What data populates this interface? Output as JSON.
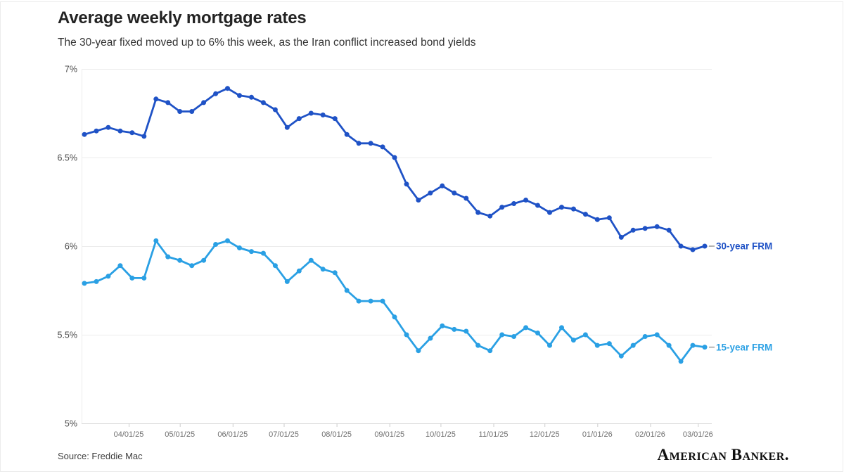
{
  "chart_data": {
    "type": "line",
    "title": "Average weekly mortgage rates",
    "subtitle": "The 30-year fixed moved up to 6% this week, as the Iran conflict increased bond yields",
    "xlabel": "",
    "ylabel": "",
    "ylim": [
      5,
      7
    ],
    "grid": "horizontal-only",
    "legend_position": "right-of-line-ends",
    "frequency": "weekly",
    "start_date": "2025-03-06",
    "end_date": "2026-03-05",
    "y_ticks": [
      {
        "value": 7,
        "label": "7%"
      },
      {
        "value": 6.5,
        "label": "6.5%"
      },
      {
        "value": 6,
        "label": "6%"
      },
      {
        "value": 5.5,
        "label": "5.5%"
      },
      {
        "value": 5,
        "label": "5%"
      }
    ],
    "x_ticks": [
      {
        "label": "04/01/25",
        "date": "2025-04-01"
      },
      {
        "label": "05/01/25",
        "date": "2025-05-01"
      },
      {
        "label": "06/01/25",
        "date": "2025-06-01"
      },
      {
        "label": "07/01/25",
        "date": "2025-07-01"
      },
      {
        "label": "08/01/25",
        "date": "2025-08-01"
      },
      {
        "label": "09/01/25",
        "date": "2025-09-01"
      },
      {
        "label": "10/01/25",
        "date": "2025-10-01"
      },
      {
        "label": "11/01/25",
        "date": "2025-11-01"
      },
      {
        "label": "12/01/25",
        "date": "2025-12-01"
      },
      {
        "label": "01/01/26",
        "date": "2026-01-01"
      },
      {
        "label": "02/01/26",
        "date": "2026-02-01"
      },
      {
        "label": "03/01/26",
        "date": "2026-03-01"
      }
    ],
    "dates": [
      "03/06/25",
      "03/13/25",
      "03/20/25",
      "03/27/25",
      "04/03/25",
      "04/10/25",
      "04/17/25",
      "04/24/25",
      "05/01/25",
      "05/08/25",
      "05/15/25",
      "05/22/25",
      "05/29/25",
      "06/05/25",
      "06/12/25",
      "06/19/25",
      "06/26/25",
      "07/03/25",
      "07/10/25",
      "07/17/25",
      "07/24/25",
      "07/31/25",
      "08/07/25",
      "08/14/25",
      "08/21/25",
      "08/28/25",
      "09/04/25",
      "09/11/25",
      "09/18/25",
      "09/25/25",
      "10/02/25",
      "10/09/25",
      "10/16/25",
      "10/23/25",
      "10/30/25",
      "11/06/25",
      "11/13/25",
      "11/20/25",
      "11/27/25",
      "12/04/25",
      "12/11/25",
      "12/18/25",
      "12/25/25",
      "01/01/26",
      "01/08/26",
      "01/15/26",
      "01/22/26",
      "01/29/26",
      "02/05/26",
      "02/12/26",
      "02/19/26",
      "02/26/26",
      "03/05/26"
    ],
    "series": [
      {
        "name": "30-year FRM",
        "color": "#1f52c6",
        "values": [
          6.63,
          6.65,
          6.67,
          6.65,
          6.64,
          6.62,
          6.83,
          6.81,
          6.76,
          6.76,
          6.81,
          6.86,
          6.89,
          6.85,
          6.84,
          6.81,
          6.77,
          6.67,
          6.72,
          6.75,
          6.74,
          6.72,
          6.63,
          6.58,
          6.58,
          6.56,
          6.5,
          6.35,
          6.26,
          6.3,
          6.34,
          6.3,
          6.27,
          6.19,
          6.17,
          6.22,
          6.24,
          6.26,
          6.23,
          6.19,
          6.22,
          6.21,
          6.18,
          6.15,
          6.16,
          6.05,
          6.09,
          6.1,
          6.11,
          6.09,
          6.0,
          5.98,
          6.0
        ]
      },
      {
        "name": "15-year FRM",
        "color": "#2aa0e4",
        "values": [
          5.79,
          5.8,
          5.83,
          5.89,
          5.82,
          5.82,
          6.03,
          5.94,
          5.92,
          5.89,
          5.92,
          6.01,
          6.03,
          5.99,
          5.97,
          5.96,
          5.89,
          5.8,
          5.86,
          5.92,
          5.87,
          5.85,
          5.75,
          5.69,
          5.69,
          5.69,
          5.6,
          5.5,
          5.41,
          5.48,
          5.55,
          5.53,
          5.52,
          5.44,
          5.41,
          5.5,
          5.49,
          5.54,
          5.51,
          5.44,
          5.54,
          5.47,
          5.5,
          5.44,
          5.45,
          5.38,
          5.44,
          5.49,
          5.5,
          5.44,
          5.35,
          5.44,
          5.43
        ]
      }
    ]
  },
  "footer": {
    "source": "Source: Freddie Mac",
    "logo_text": "American Banker."
  }
}
